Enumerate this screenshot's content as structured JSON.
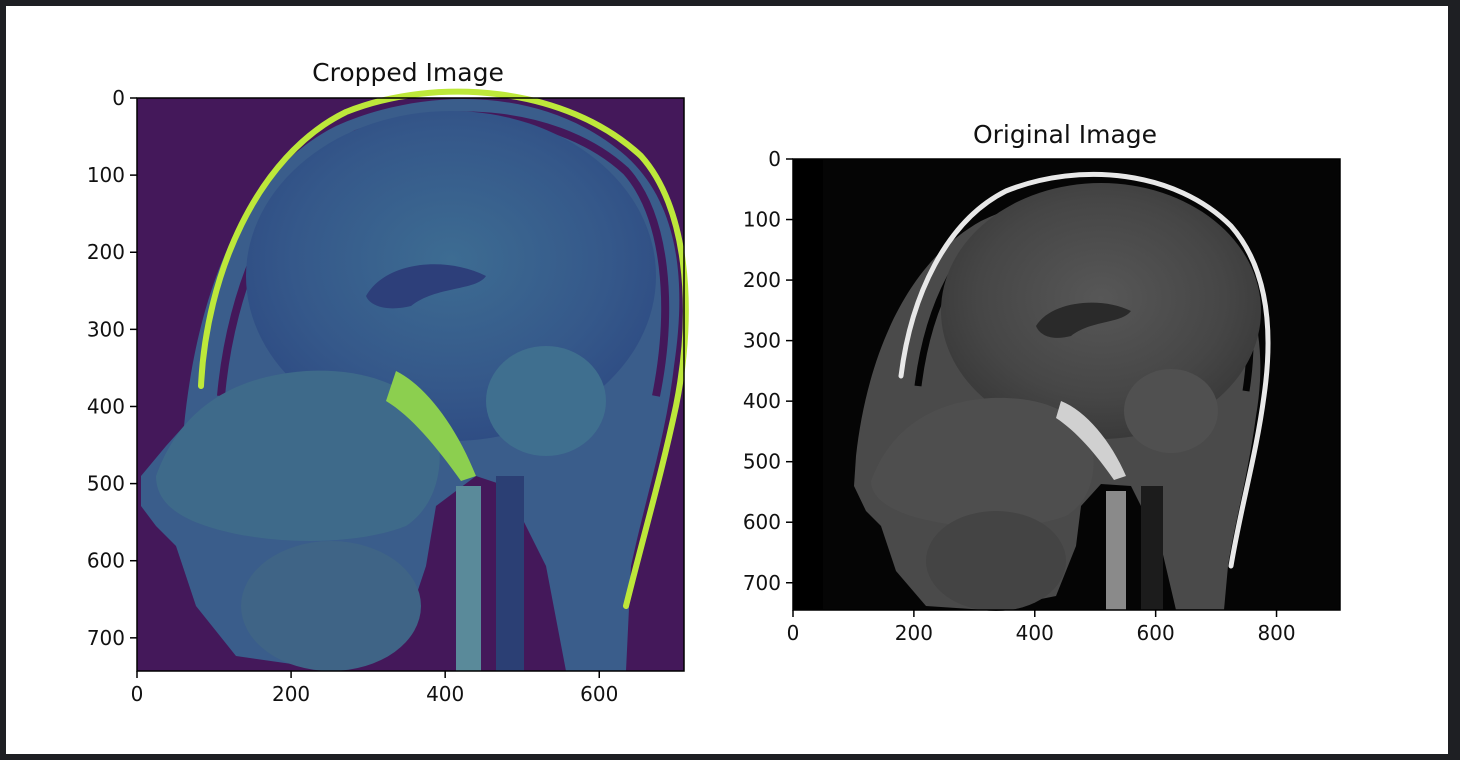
{
  "figure": {
    "colors": {
      "background": "#1e1f23",
      "canvas": "#ffffff",
      "viridis_dark": "#44185a",
      "viridis_mid": "#3a5d8b",
      "viridis_light": "#bde83a",
      "gray_dark": "#050505",
      "gray_mid": "#4a4a4a",
      "gray_light": "#e8e8e8"
    },
    "left": {
      "title": "Cropped Image",
      "colormap": "viridis",
      "xlim": [
        0,
        710
      ],
      "ylim": [
        743,
        0
      ],
      "x_ticks": [
        0,
        200,
        400,
        600
      ],
      "y_ticks": [
        0,
        100,
        200,
        300,
        400,
        500,
        600,
        700
      ],
      "x_tick_labels": [
        "0",
        "200",
        "400",
        "600"
      ],
      "y_tick_labels": [
        "0",
        "100",
        "200",
        "300",
        "400",
        "500",
        "600",
        "700"
      ]
    },
    "right": {
      "title": "Original Image",
      "colormap": "gray",
      "xlim": [
        0,
        905
      ],
      "ylim": [
        745,
        0
      ],
      "x_ticks": [
        0,
        200,
        400,
        600,
        800
      ],
      "y_ticks": [
        0,
        100,
        200,
        300,
        400,
        500,
        600,
        700
      ],
      "x_tick_labels": [
        "0",
        "200",
        "400",
        "600",
        "800"
      ],
      "y_tick_labels": [
        "0",
        "100",
        "200",
        "300",
        "400",
        "500",
        "600",
        "700"
      ]
    }
  }
}
